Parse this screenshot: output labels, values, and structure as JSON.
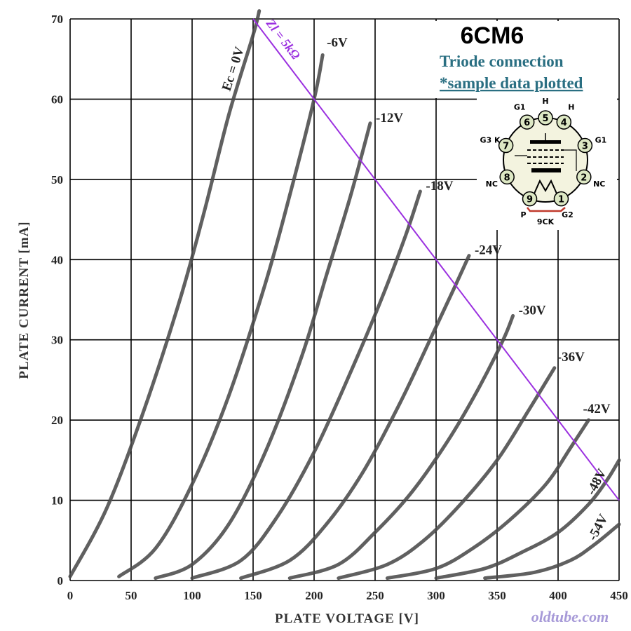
{
  "chart_data": {
    "type": "line",
    "title": "6CM6",
    "subtitle_1": "Triode connection",
    "subtitle_2": "*sample data plotted",
    "xlabel": "PLATE  VOLTAGE  [V]",
    "ylabel": "PLATE  CURRENT  [mA]",
    "xlim": [
      0,
      450
    ],
    "ylim": [
      0,
      70
    ],
    "x_ticks": [
      "0",
      "50",
      "100",
      "150",
      "200",
      "250",
      "300",
      "350",
      "400",
      "450"
    ],
    "y_ticks": [
      "0",
      "10",
      "20",
      "30",
      "40",
      "50",
      "60",
      "70"
    ],
    "grid": true,
    "watermark": "oldtube.com",
    "series": [
      {
        "name": "Ec = 0V",
        "x": [
          0,
          30,
          60,
          90,
          110,
          130,
          150,
          155
        ],
        "y": [
          0.5,
          9,
          21,
          35,
          46,
          58,
          68,
          71
        ]
      },
      {
        "name": "-6V",
        "x": [
          40,
          70,
          100,
          130,
          160,
          180,
          200,
          207
        ],
        "y": [
          0.5,
          4,
          12,
          23,
          37,
          48,
          60,
          65.5
        ]
      },
      {
        "name": "-12V",
        "x": [
          70,
          100,
          130,
          160,
          190,
          210,
          230,
          246
        ],
        "y": [
          0.3,
          2,
          7,
          16,
          28,
          38,
          48,
          57
        ]
      },
      {
        "name": "-18V",
        "x": [
          100,
          140,
          170,
          200,
          230,
          255,
          275,
          287
        ],
        "y": [
          0.3,
          2.5,
          8,
          16,
          26,
          35,
          43,
          48.5
        ]
      },
      {
        "name": "-24V",
        "x": [
          140,
          180,
          210,
          240,
          270,
          295,
          315,
          327
        ],
        "y": [
          0.3,
          2.5,
          7,
          13.5,
          22,
          30,
          36.5,
          40.5
        ]
      },
      {
        "name": "-30V",
        "x": [
          180,
          220,
          250,
          280,
          310,
          335,
          355,
          363
        ],
        "y": [
          0.3,
          2,
          6,
          11,
          17.5,
          24,
          30,
          33
        ]
      },
      {
        "name": "-36V",
        "x": [
          220,
          260,
          290,
          320,
          350,
          375,
          397
        ],
        "y": [
          0.3,
          2,
          5,
          9.5,
          15,
          21,
          26.5
        ]
      },
      {
        "name": "-42V",
        "x": [
          260,
          300,
          330,
          360,
          390,
          410,
          425
        ],
        "y": [
          0.3,
          1.5,
          4,
          7.5,
          12,
          16.5,
          20
        ]
      },
      {
        "name": "-48V",
        "x": [
          300,
          340,
          370,
          400,
          425,
          440,
          450
        ],
        "y": [
          0.3,
          1.5,
          3.5,
          6,
          9.5,
          12.5,
          15
        ]
      },
      {
        "name": "-54V",
        "x": [
          340,
          380,
          410,
          430,
          450
        ],
        "y": [
          0.3,
          1,
          2.5,
          4.5,
          7
        ]
      }
    ],
    "load_line": {
      "label": "Zl = 5kΩ",
      "x": [
        150,
        450
      ],
      "y": [
        70,
        10
      ]
    }
  },
  "base_diagram": {
    "label": "9CK",
    "pins": [
      {
        "num": "1",
        "name": "G2"
      },
      {
        "num": "2",
        "name": "NC"
      },
      {
        "num": "3",
        "name": "G1"
      },
      {
        "num": "4",
        "name": "H"
      },
      {
        "num": "5",
        "name": "H"
      },
      {
        "num": "6",
        "name": "G1"
      },
      {
        "num": "7",
        "name": "G3 K"
      },
      {
        "num": "8",
        "name": "NC"
      },
      {
        "num": "9",
        "name": "P"
      }
    ]
  },
  "colors": {
    "curve": "#4a4a4a",
    "grid": "#000000",
    "load_line": "#9b30e0",
    "subtitle": "#2a6f82",
    "watermark": "#a79ad8",
    "pin_fill": "#dde8c4",
    "base_fill": "#f3f3df"
  }
}
